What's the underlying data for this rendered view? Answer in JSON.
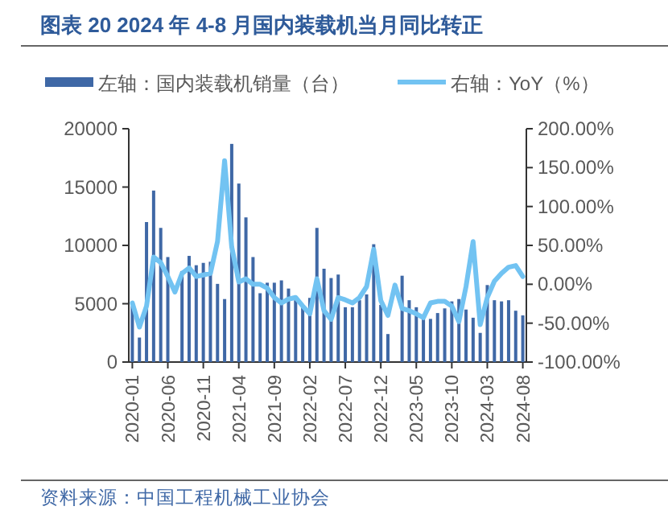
{
  "chart_data": {
    "type": "bar",
    "title": "图表 20 2024 年 4-8 月国内装载机当月同比转正",
    "categories": [
      "2020-01",
      null,
      null,
      null,
      null,
      "2020-06",
      null,
      null,
      null,
      null,
      "2020-11",
      null,
      null,
      null,
      null,
      "2021-04",
      null,
      null,
      null,
      null,
      "2021-09",
      null,
      null,
      null,
      null,
      "2022-02",
      null,
      null,
      null,
      null,
      "2022-07",
      null,
      null,
      null,
      null,
      "2022-12",
      null,
      null,
      null,
      null,
      "2023-05",
      null,
      null,
      null,
      null,
      "2023-10",
      null,
      null,
      null,
      null,
      "2024-03",
      null,
      null,
      null,
      null,
      "2024-08"
    ],
    "series": [
      {
        "name": "左轴：国内装载机销量（台）",
        "color": "#3f68a6",
        "values": [
          4800,
          2100,
          12000,
          14700,
          11500,
          9000,
          null,
          7800,
          9100,
          8300,
          8500,
          8600,
          6700,
          5400,
          18700,
          15300,
          12400,
          9000,
          5900,
          6800,
          6800,
          7000,
          6300,
          5300,
          4800,
          5500,
          11500,
          8000,
          7200,
          7500,
          4700,
          4700,
          5300,
          5800,
          10100,
          4900,
          2400,
          null,
          7400,
          5300,
          4700,
          3700,
          3700,
          4200,
          4600,
          5200,
          5400,
          4500,
          3800,
          2500,
          6600,
          5300,
          5200,
          5300,
          4400,
          4000
        ]
      },
      {
        "name": "右轴：YoY（%）",
        "type": "line",
        "axis": "y2",
        "color": "#72c3f2",
        "values": [
          -24,
          -55,
          -28,
          35,
          28,
          10,
          -10,
          14,
          21,
          10,
          12,
          14,
          55,
          159,
          48,
          3,
          7,
          0,
          0,
          -5,
          -17,
          -24,
          -19,
          -17,
          -28,
          -38,
          7,
          -34,
          -45,
          -17,
          -20,
          -24,
          -17,
          -3,
          45,
          -21,
          -40,
          -1,
          -31,
          -34,
          -38,
          -43,
          -24,
          -22,
          -22,
          -28,
          -48,
          -3,
          55,
          -52,
          -17,
          4,
          14,
          22,
          24,
          10
        ]
      }
    ],
    "ylim": [
      0,
      20000
    ],
    "yticks": [
      0,
      5000,
      10000,
      15000,
      20000
    ],
    "y2lim": [
      -100,
      200
    ],
    "y2ticks": [
      {
        "value": -100,
        "label": "-100.00%"
      },
      {
        "value": -50,
        "label": "-50.00%"
      },
      {
        "value": 0,
        "label": "0.00%"
      },
      {
        "value": 50,
        "label": "50.00%"
      },
      {
        "value": 100,
        "label": "100.00%"
      },
      {
        "value": 150,
        "label": "150.00%"
      },
      {
        "value": 200,
        "label": "200.00%"
      }
    ],
    "grid": false,
    "legend": "top",
    "annotations": [
      "资料来源：中国工程机械工业协会"
    ]
  }
}
